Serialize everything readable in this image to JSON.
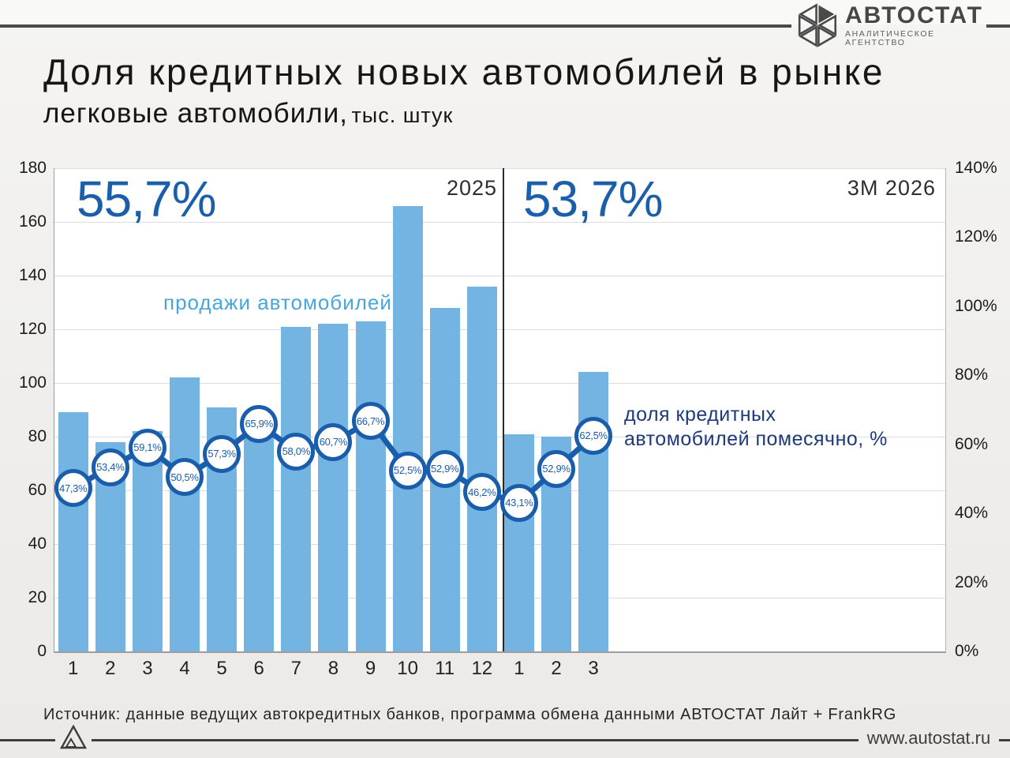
{
  "brand": {
    "logo_text": "АВТОСТАТ",
    "logo_subtext": "АНАЛИТИЧЕСКОЕ АГЕНТСТВО",
    "website": "www.autostat.ru"
  },
  "title": {
    "main": "Доля кредитных новых автомобилей в рынке",
    "sub": "легковые автомобили,",
    "sub_unit": "тыс. штук"
  },
  "source_line": "Источник: данные ведущих автокредитных банков, программа обмена данными АВТОСТАТ Лайт + FrankRG",
  "colors": {
    "bar": "#74b4e2",
    "line": "#1a5dab",
    "marker_fill": "#ffffff",
    "big_share_text": "#1b5ea9",
    "bars_label_text": "#49a5da",
    "line_label_text": "#1e3a7a",
    "gridline": "#dcdcdc"
  },
  "chart_data": {
    "type": "bar+line",
    "title": "Доля кредитных новых автомобилей в рынке, легковые автомобили, тыс. штук",
    "left_axis": {
      "label": "продажи автомобилей, тыс. штук",
      "min": 0,
      "max": 180,
      "step": 20
    },
    "right_axis": {
      "label": "доля кредитных автомобилей, %",
      "min": 0,
      "max": 140,
      "step": 20,
      "unit": "%"
    },
    "grid": true,
    "period_labels": {
      "left": "2025",
      "right": "3M 2026"
    },
    "period_share": {
      "left": "55,7%",
      "right": "53,7%"
    },
    "bars_label": "продажи автомобилей",
    "line_label": {
      "line1": "доля кредитных",
      "line2": "автомобилей помесячно, %"
    },
    "groups": [
      {
        "year": "2025",
        "months": [
          "1",
          "2",
          "3",
          "4",
          "5",
          "6",
          "7",
          "8",
          "9",
          "10",
          "11",
          "12"
        ],
        "sales_thousand_units": [
          89,
          78,
          82,
          102,
          91,
          87,
          121,
          122,
          123,
          166,
          128,
          136
        ],
        "credit_share_pct": [
          47.3,
          53.4,
          59.1,
          50.5,
          57.3,
          65.9,
          58.0,
          60.7,
          66.7,
          52.5,
          52.9,
          46.2
        ],
        "credit_share_labels": [
          "47,3%",
          "53,4%",
          "59,1%",
          "50,5%",
          "57,3%",
          "65,9%",
          "58,0%",
          "60,7%",
          "66,7%",
          "52,5%",
          "52,9%",
          "46,2%"
        ]
      },
      {
        "year": "3M 2026",
        "months": [
          "1",
          "2",
          "3"
        ],
        "sales_thousand_units": [
          81,
          80,
          104
        ],
        "credit_share_pct": [
          43.1,
          52.9,
          62.5
        ],
        "credit_share_labels": [
          "43,1%",
          "52,9%",
          "62,5%"
        ]
      }
    ]
  }
}
